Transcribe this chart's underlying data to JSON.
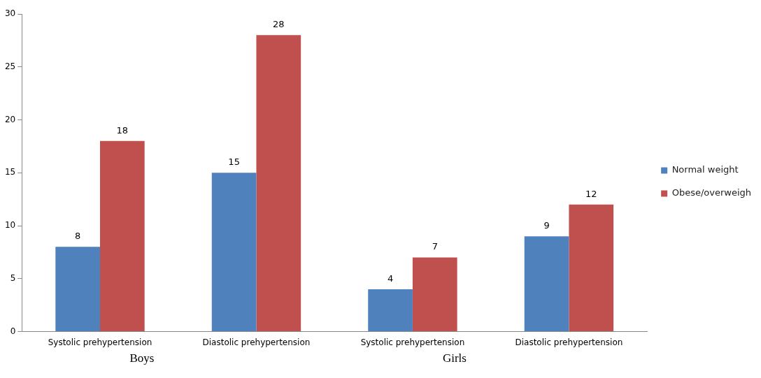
{
  "chart_data": {
    "type": "bar",
    "categories": [
      "Systolic prehypertension",
      "Diastolic prehypertension",
      "Systolic prehypertension",
      "Diastolic prehypertension"
    ],
    "series": [
      {
        "name": "Normal weight",
        "color": "#4f81bd",
        "values": [
          8,
          15,
          4,
          9
        ]
      },
      {
        "name": "Obese/overweigh",
        "color": "#c0504d",
        "values": [
          18,
          28,
          7,
          12
        ]
      }
    ],
    "ylim": [
      0,
      30
    ],
    "yticks": [
      0,
      5,
      10,
      15,
      20,
      25,
      30
    ],
    "grid": false,
    "legend": "right",
    "data_labels": true,
    "annotations": [
      "Boys",
      "Girls"
    ]
  }
}
